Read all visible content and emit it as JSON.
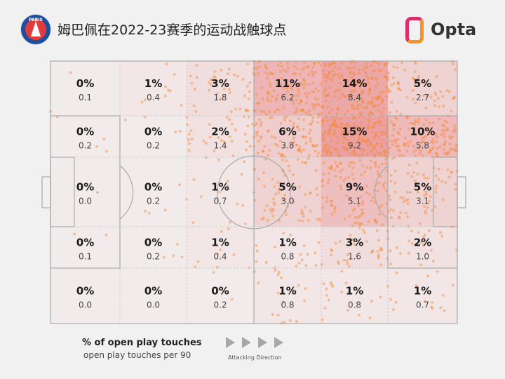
{
  "header": {
    "title": "姆巴佩在2022-23赛季的运动战触球点",
    "club_crest_text": "PARIS",
    "brand": "Opta"
  },
  "legend": {
    "primary": "% of open play touches",
    "secondary": "open play touches per 90",
    "direction": "Attacking Direction"
  },
  "colors": {
    "heat": "#e66a6a",
    "dots": "#f5893a",
    "lines": "#a9a9a9",
    "background": "#f2f1f1"
  },
  "chart_data": {
    "type": "heatmap",
    "title": "姆巴佩在2022-23赛季的运动战触球点",
    "columns": 6,
    "rows": 5,
    "pct": [
      [
        "0%",
        "1%",
        "3%",
        "11%",
        "14%",
        "5%"
      ],
      [
        "0%",
        "0%",
        "2%",
        "6%",
        "15%",
        "10%"
      ],
      [
        "0%",
        "0%",
        "1%",
        "5%",
        "9%",
        "5%"
      ],
      [
        "0%",
        "0%",
        "1%",
        "1%",
        "3%",
        "2%"
      ],
      [
        "0%",
        "0%",
        "0%",
        "1%",
        "1%",
        "1%"
      ]
    ],
    "per90": [
      [
        "0.1",
        "0.4",
        "1.8",
        "6.2",
        "8.4",
        "2.7"
      ],
      [
        "0.2",
        "0.2",
        "1.4",
        "3.8",
        "9.2",
        "5.8"
      ],
      [
        "0.0",
        "0.2",
        "0.7",
        "3.0",
        "5.1",
        "3.1"
      ],
      [
        "0.1",
        "0.2",
        "0.4",
        "0.8",
        "1.6",
        "1.0"
      ],
      [
        "0.0",
        "0.0",
        "0.2",
        "0.8",
        "0.8",
        "0.7"
      ]
    ]
  }
}
